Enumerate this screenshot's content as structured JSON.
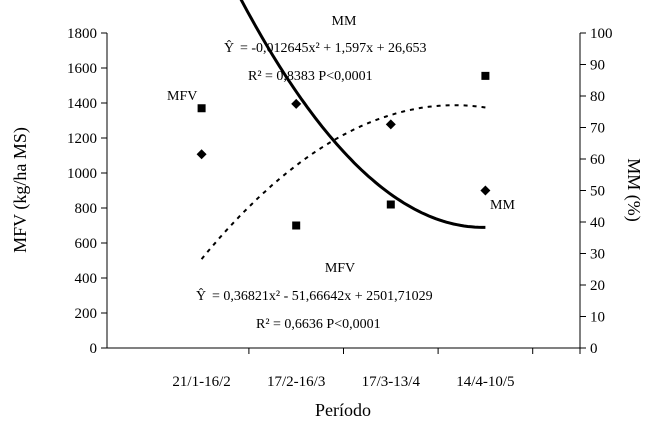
{
  "chart_data": {
    "type": "scatter",
    "categories": [
      "21/1-16/2",
      "17/2-16/3",
      "17/3-13/4",
      "14/4-10/5"
    ],
    "xlabel": "Período",
    "ylabel_left": "MFV (kg/ha MS)",
    "ylabel_right": "MM  (%)",
    "ylim_left": [
      0,
      1800
    ],
    "ylim_right": [
      0,
      100
    ],
    "yticks_left": [
      0,
      200,
      400,
      600,
      800,
      1000,
      1200,
      1400,
      1600,
      1800
    ],
    "yticks_right": [
      0,
      10,
      20,
      30,
      40,
      50,
      60,
      70,
      80,
      90,
      100
    ],
    "grid": false,
    "series": [
      {
        "name": "MFV",
        "axis": "left",
        "marker": "square",
        "values": [
          1370,
          700,
          820,
          1555
        ],
        "fit": {
          "a": 0.36821,
          "b": -51.66642,
          "c": 2501.71029,
          "style": "solid"
        }
      },
      {
        "name": "MM",
        "axis": "right",
        "marker": "diamond",
        "values": [
          61.5,
          77.5,
          71,
          50
        ],
        "fit": {
          "a": -0.012645,
          "b": 1.597,
          "c": 26.653,
          "style": "dashed"
        }
      }
    ],
    "annotations": {
      "mm_title": "MM",
      "mm_equation": "= -0,012645x² + 1,597x + 26,653",
      "mm_r2": "R² = 0,8383 P<0,0001",
      "mfv_title": "MFV",
      "mfv_equation": "= 0,36821x² - 51,66642x + 2501,71029",
      "mfv_r2": "R² = 0,6636 P<0,0001",
      "yhat": "Ŷ",
      "mfv_curve_label": "MFV",
      "mm_curve_label": "MM"
    }
  }
}
